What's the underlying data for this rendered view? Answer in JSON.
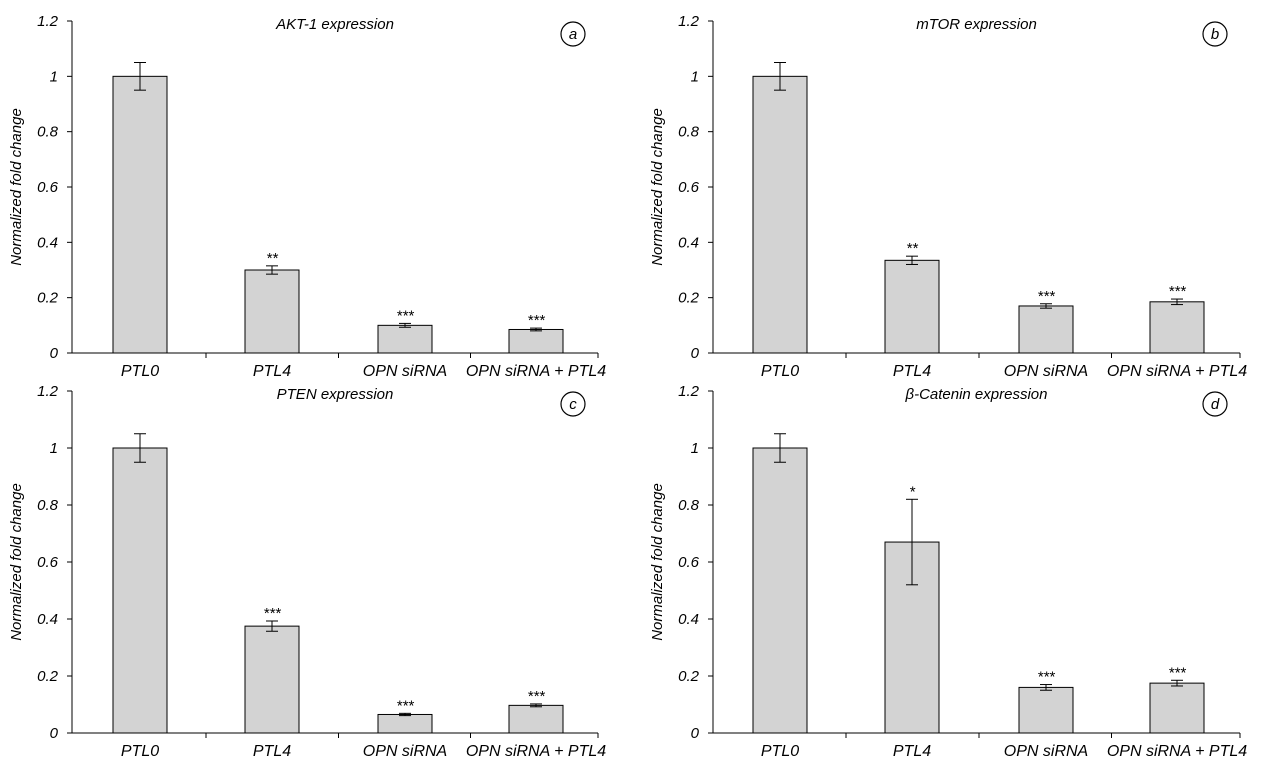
{
  "chart_data": [
    {
      "type": "bar",
      "panel_label": "a",
      "title": "AKT-1 expression",
      "xlabel": "",
      "ylabel": "Normalized fold change",
      "categories": [
        "PTL0",
        "PTL4",
        "OPN siRNA",
        "OPN siRNA + PTL4"
      ],
      "values": [
        1.0,
        0.3,
        0.1,
        0.085
      ],
      "errors": [
        0.05,
        0.015,
        0.007,
        0.005
      ],
      "significance": [
        "",
        "**",
        "***",
        "***"
      ],
      "ylim": [
        0,
        1.2
      ],
      "yticks": [
        "0",
        "0.2",
        "0.4",
        "0.6",
        "0.8",
        "1",
        "1.2"
      ],
      "bar_color": "#d3d3d3",
      "grid": false
    },
    {
      "type": "bar",
      "panel_label": "b",
      "title": "mTOR expression",
      "xlabel": "",
      "ylabel": "Normalized fold change",
      "categories": [
        "PTL0",
        "PTL4",
        "OPN siRNA",
        "OPN siRNA + PTL4"
      ],
      "values": [
        1.0,
        0.335,
        0.17,
        0.185
      ],
      "errors": [
        0.05,
        0.015,
        0.008,
        0.01
      ],
      "significance": [
        "",
        "**",
        "***",
        "***"
      ],
      "ylim": [
        0,
        1.2
      ],
      "yticks": [
        "0",
        "0.2",
        "0.4",
        "0.6",
        "0.8",
        "1",
        "1.2"
      ],
      "bar_color": "#d3d3d3",
      "grid": false
    },
    {
      "type": "bar",
      "panel_label": "c",
      "title": "PTEN expression",
      "xlabel": "",
      "ylabel": "Normalized fold change",
      "categories": [
        "PTL0",
        "PTL4",
        "OPN siRNA",
        "OPN siRNA + PTL4"
      ],
      "values": [
        1.0,
        0.375,
        0.065,
        0.097
      ],
      "errors": [
        0.05,
        0.018,
        0.004,
        0.005
      ],
      "significance": [
        "",
        "***",
        "***",
        "***"
      ],
      "ylim": [
        0,
        1.2
      ],
      "yticks": [
        "0",
        "0.2",
        "0.4",
        "0.6",
        "0.8",
        "1",
        "1.2"
      ],
      "bar_color": "#d3d3d3",
      "grid": false
    },
    {
      "type": "bar",
      "panel_label": "d",
      "title": "β-Catenin expression",
      "xlabel": "",
      "ylabel": "Normalized fold change",
      "categories": [
        "PTL0",
        "PTL4",
        "OPN siRNA",
        "OPN siRNA + PTL4"
      ],
      "values": [
        1.0,
        0.67,
        0.16,
        0.175
      ],
      "errors": [
        0.05,
        0.15,
        0.01,
        0.01
      ],
      "significance": [
        "",
        "*",
        "***",
        "***"
      ],
      "ylim": [
        0,
        1.2
      ],
      "yticks": [
        "0",
        "0.2",
        "0.4",
        "0.6",
        "0.8",
        "1",
        "1.2"
      ],
      "bar_color": "#d3d3d3",
      "grid": false
    }
  ]
}
